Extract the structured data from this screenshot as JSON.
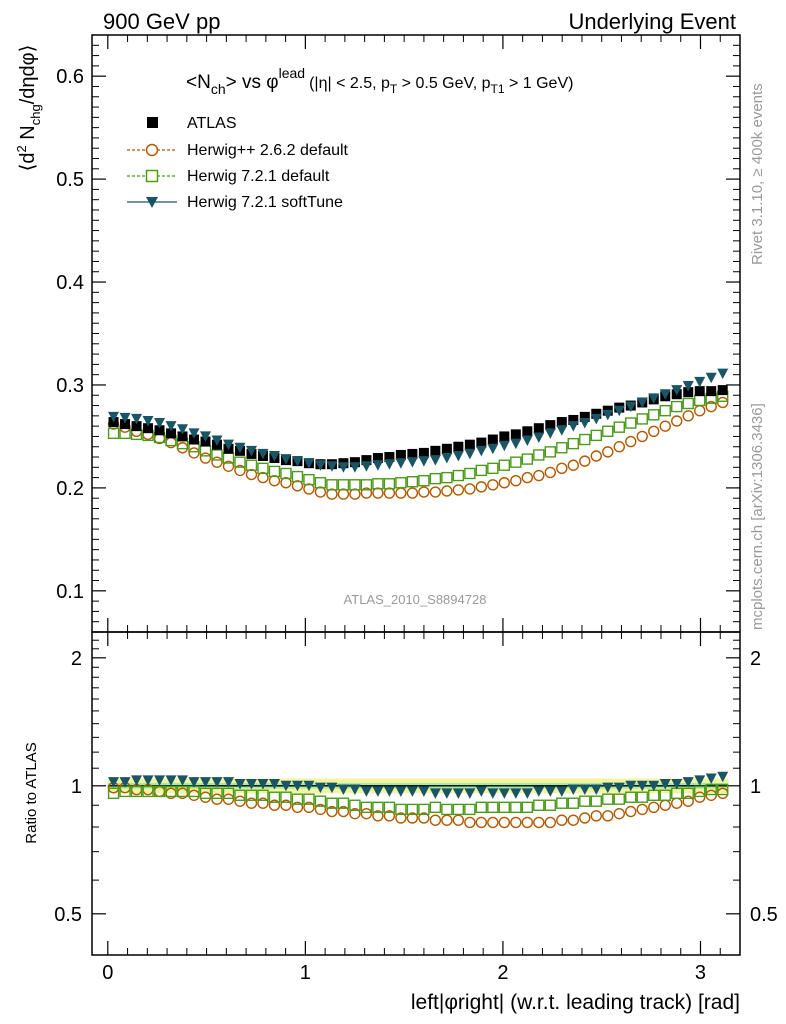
{
  "header": {
    "left": "900 GeV pp",
    "right": "Underlying Event"
  },
  "side_labels": {
    "rivet": "Rivet 3.1.10, ≥ 400k events",
    "mcplots": "mcplots.cern.ch [arXiv:1306.3436]"
  },
  "colors": {
    "atlas": "#000000",
    "herwigpp": "#b35900",
    "herwig7_default": "#4c9a1a",
    "herwig7_softtune": "#1a5566",
    "band_outer": "#f2f5a0",
    "band_inner": "#a6e8a6"
  },
  "chart_data": [
    {
      "panel": "main",
      "type": "scatter",
      "title": "<Nch> vs φlead (|η| < 2.5, pT > 0.5 GeV, pT1 > 1 GeV)",
      "title_parts": {
        "pre": "<N",
        "sub1": "ch",
        "mid": "> vs φ",
        "sup1": "lead",
        "cuts_a": "(|η| < 2.5, p",
        "sub2": "T",
        "cuts_b": " > 0.5 GeV, p",
        "sub3": "T1",
        "cuts_c": " > 1 GeV)"
      },
      "ylabel": "⟨d² Nchg/dηdφ⟩",
      "ylabel_parts": {
        "a": "⟨d",
        "sup": "2",
        "b": " N",
        "sub": "chg",
        "c": "/dηdφ⟩"
      },
      "ylim": [
        0.06,
        0.64
      ],
      "yticks": [
        0.1,
        0.2,
        0.3,
        0.4,
        0.5,
        0.6
      ],
      "ytick_labels": [
        "0.1",
        "0.2",
        "0.3",
        "0.4",
        "0.5",
        "0.6"
      ],
      "watermark": "ATLAS_2010_S8894728",
      "legend_position": "top-left",
      "series": [
        {
          "name": "ATLAS",
          "key": "atlas",
          "marker": "square-filled",
          "y": [
            0.264,
            0.262,
            0.26,
            0.258,
            0.256,
            0.253,
            0.25,
            0.247,
            0.245,
            0.242,
            0.238,
            0.236,
            0.233,
            0.231,
            0.229,
            0.227,
            0.226,
            0.224,
            0.223,
            0.223,
            0.224,
            0.225,
            0.227,
            0.229,
            0.23,
            0.232,
            0.233,
            0.234,
            0.236,
            0.238,
            0.24,
            0.242,
            0.244,
            0.247,
            0.25,
            0.252,
            0.255,
            0.258,
            0.261,
            0.264,
            0.266,
            0.269,
            0.272,
            0.275,
            0.278,
            0.28,
            0.283,
            0.286,
            0.289,
            0.291,
            0.293,
            0.294,
            0.294,
            0.295
          ]
        },
        {
          "name": "Herwig++ 2.6.2 default",
          "key": "herwigpp",
          "marker": "circle-open",
          "y": [
            0.262,
            0.259,
            0.255,
            0.252,
            0.248,
            0.244,
            0.239,
            0.234,
            0.229,
            0.225,
            0.221,
            0.217,
            0.213,
            0.21,
            0.207,
            0.205,
            0.202,
            0.199,
            0.196,
            0.194,
            0.194,
            0.194,
            0.195,
            0.195,
            0.195,
            0.195,
            0.195,
            0.196,
            0.196,
            0.197,
            0.198,
            0.199,
            0.201,
            0.203,
            0.205,
            0.207,
            0.21,
            0.212,
            0.215,
            0.219,
            0.222,
            0.226,
            0.231,
            0.235,
            0.24,
            0.245,
            0.25,
            0.255,
            0.26,
            0.265,
            0.27,
            0.275,
            0.279,
            0.283
          ]
        },
        {
          "name": "Herwig 7.2.1 default",
          "key": "herwig7_default",
          "marker": "square-open",
          "y": [
            0.253,
            0.253,
            0.252,
            0.251,
            0.249,
            0.246,
            0.243,
            0.24,
            0.236,
            0.232,
            0.229,
            0.225,
            0.222,
            0.219,
            0.216,
            0.214,
            0.211,
            0.208,
            0.205,
            0.203,
            0.203,
            0.203,
            0.203,
            0.204,
            0.204,
            0.205,
            0.206,
            0.207,
            0.209,
            0.21,
            0.212,
            0.214,
            0.217,
            0.219,
            0.222,
            0.225,
            0.228,
            0.232,
            0.235,
            0.239,
            0.243,
            0.247,
            0.251,
            0.255,
            0.259,
            0.263,
            0.267,
            0.271,
            0.275,
            0.279,
            0.282,
            0.285,
            0.287,
            0.289
          ]
        },
        {
          "name": "Herwig 7.2.1 softTune",
          "key": "herwig7_softtune",
          "marker": "triangle-down-filled",
          "y": [
            0.269,
            0.268,
            0.267,
            0.265,
            0.263,
            0.26,
            0.257,
            0.253,
            0.25,
            0.246,
            0.242,
            0.239,
            0.236,
            0.233,
            0.231,
            0.228,
            0.226,
            0.224,
            0.222,
            0.221,
            0.22,
            0.22,
            0.221,
            0.222,
            0.223,
            0.224,
            0.225,
            0.226,
            0.227,
            0.229,
            0.231,
            0.233,
            0.236,
            0.238,
            0.241,
            0.243,
            0.246,
            0.249,
            0.253,
            0.256,
            0.26,
            0.263,
            0.267,
            0.271,
            0.275,
            0.279,
            0.283,
            0.287,
            0.291,
            0.295,
            0.299,
            0.303,
            0.307,
            0.311
          ]
        }
      ]
    },
    {
      "panel": "ratio",
      "type": "scatter",
      "ylabel": "Ratio to ATLAS",
      "ylim": [
        0.4,
        2.3
      ],
      "yticks": [
        0.5,
        1,
        2
      ],
      "ytick_labels": [
        "0.5",
        "1",
        "2"
      ],
      "xlabel": "left|φright| (w.r.t. leading track) [rad]",
      "xlim": [
        -0.08,
        3.2
      ],
      "xticks": [
        0,
        1,
        2,
        3
      ],
      "xtick_labels": [
        "0",
        "1",
        "2",
        "3"
      ],
      "band": {
        "outer": [
          0.96,
          1.04
        ],
        "inner": [
          0.985,
          1.015
        ]
      },
      "series": [
        {
          "name": "Herwig++ 2.6.2 default",
          "key": "herwigpp",
          "y": [
            0.99,
            0.99,
            0.98,
            0.98,
            0.97,
            0.96,
            0.96,
            0.95,
            0.94,
            0.93,
            0.93,
            0.92,
            0.91,
            0.91,
            0.9,
            0.9,
            0.89,
            0.89,
            0.88,
            0.87,
            0.87,
            0.86,
            0.86,
            0.85,
            0.85,
            0.84,
            0.84,
            0.84,
            0.83,
            0.83,
            0.83,
            0.82,
            0.82,
            0.82,
            0.82,
            0.82,
            0.82,
            0.82,
            0.82,
            0.83,
            0.83,
            0.84,
            0.85,
            0.85,
            0.86,
            0.87,
            0.88,
            0.89,
            0.9,
            0.91,
            0.92,
            0.94,
            0.95,
            0.96
          ]
        },
        {
          "name": "Herwig 7.2.1 default",
          "key": "herwig7_default",
          "y": [
            0.96,
            0.97,
            0.97,
            0.97,
            0.97,
            0.97,
            0.97,
            0.97,
            0.96,
            0.96,
            0.96,
            0.95,
            0.95,
            0.95,
            0.94,
            0.94,
            0.93,
            0.93,
            0.92,
            0.91,
            0.91,
            0.9,
            0.89,
            0.89,
            0.89,
            0.88,
            0.88,
            0.88,
            0.89,
            0.88,
            0.88,
            0.88,
            0.89,
            0.89,
            0.89,
            0.89,
            0.89,
            0.9,
            0.9,
            0.91,
            0.91,
            0.92,
            0.92,
            0.93,
            0.93,
            0.94,
            0.94,
            0.95,
            0.95,
            0.96,
            0.96,
            0.97,
            0.98,
            0.98
          ]
        },
        {
          "name": "Herwig 7.2.1 softTune",
          "key": "herwig7_softtune",
          "y": [
            1.02,
            1.02,
            1.03,
            1.03,
            1.03,
            1.03,
            1.03,
            1.02,
            1.02,
            1.02,
            1.02,
            1.01,
            1.01,
            1.01,
            1.01,
            1.0,
            1.0,
            1.0,
            0.99,
            0.99,
            0.98,
            0.98,
            0.97,
            0.97,
            0.97,
            0.97,
            0.97,
            0.97,
            0.96,
            0.96,
            0.96,
            0.96,
            0.97,
            0.96,
            0.96,
            0.96,
            0.96,
            0.97,
            0.97,
            0.97,
            0.98,
            0.98,
            0.98,
            0.99,
            0.99,
            1.0,
            1.0,
            1.0,
            1.01,
            1.01,
            1.02,
            1.03,
            1.04,
            1.05
          ]
        }
      ]
    }
  ]
}
